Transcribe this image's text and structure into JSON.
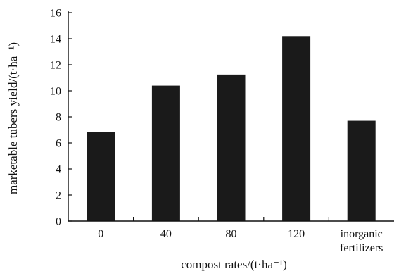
{
  "chart_data": {
    "type": "bar",
    "categories": [
      "0",
      "40",
      "80",
      "120",
      "inorganic fertilizers"
    ],
    "category_lines": [
      [
        "0"
      ],
      [
        "40"
      ],
      [
        "80"
      ],
      [
        "120"
      ],
      [
        "inorganic",
        "fertilizers"
      ]
    ],
    "values": [
      6.85,
      10.4,
      11.25,
      14.2,
      7.7
    ],
    "xlabel": "compost rates/(t·ha⁻¹)",
    "ylabel": "marketable tubers yield/(t·ha⁻¹)",
    "ylim": [
      0,
      16
    ],
    "yticks": [
      0,
      2,
      4,
      6,
      8,
      10,
      12,
      14,
      16
    ],
    "bar_color": "#1a1a1a",
    "grid": false,
    "legend": "none"
  }
}
